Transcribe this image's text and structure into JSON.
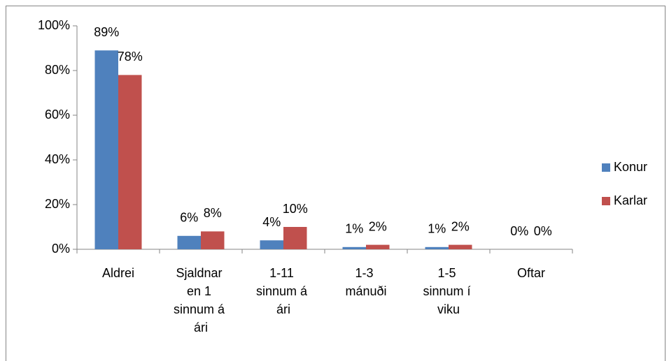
{
  "chart_data": {
    "type": "bar",
    "categories": [
      "Aldrei",
      "Sjaldnar en 1 sinnum á ári",
      "1-11 sinnum á ári",
      "1-3 mánuði",
      "1-5 sinnum í viku",
      "Oftar"
    ],
    "series": [
      {
        "name": "Konur",
        "color": "#4f81bd",
        "values": [
          89,
          6,
          4,
          1,
          1,
          0
        ],
        "value_labels": [
          "89%",
          "6%",
          "4%",
          "1%",
          "1%",
          "0%"
        ]
      },
      {
        "name": "Karlar",
        "color": "#c0504d",
        "values": [
          78,
          8,
          10,
          2,
          2,
          0
        ],
        "value_labels": [
          "78%",
          "8%",
          "10%",
          "2%",
          "2%",
          "0%"
        ]
      }
    ],
    "ylim": [
      0,
      100
    ],
    "yticks": [
      {
        "value": 0,
        "label": "0%"
      },
      {
        "value": 20,
        "label": "20%"
      },
      {
        "value": 40,
        "label": "40%"
      },
      {
        "value": 60,
        "label": "60%"
      },
      {
        "value": 80,
        "label": "80%"
      },
      {
        "value": 100,
        "label": "100%"
      }
    ],
    "legend": "right",
    "grid": false
  }
}
